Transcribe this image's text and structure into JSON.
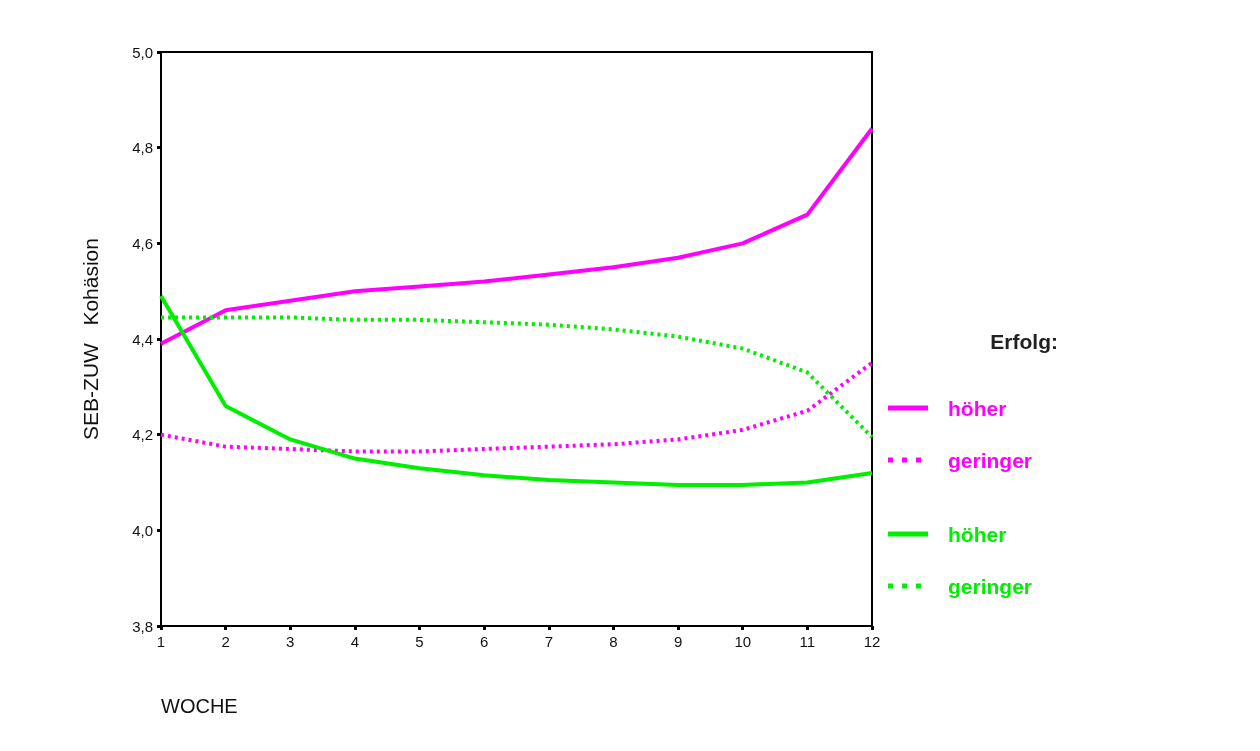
{
  "chart_data": {
    "type": "line",
    "xlabel": "WOCHE",
    "ylabel": "SEB-ZUW   Kohäsion",
    "legend_title": "Erfolg:",
    "legend": "right",
    "grid": false,
    "marker": "none",
    "x": [
      1,
      2,
      3,
      4,
      5,
      6,
      7,
      8,
      9,
      10,
      11,
      12
    ],
    "xlim": [
      1,
      12
    ],
    "xticks": [
      1,
      2,
      3,
      4,
      5,
      6,
      7,
      8,
      9,
      10,
      11,
      12
    ],
    "ylim": [
      3.8,
      5.0
    ],
    "yticks": [
      {
        "value": 3.8,
        "label": "3,8"
      },
      {
        "value": 4.0,
        "label": "4,0"
      },
      {
        "value": 4.2,
        "label": "4,2"
      },
      {
        "value": 4.4,
        "label": "4,4"
      },
      {
        "value": 4.6,
        "label": "4,6"
      },
      {
        "value": 4.8,
        "label": "4,8"
      },
      {
        "value": 5.0,
        "label": "5,0"
      }
    ],
    "series": [
      {
        "name": "höher",
        "color": "#ff00ff",
        "line_style": "solid",
        "values": [
          4.39,
          4.46,
          4.48,
          4.5,
          4.51,
          4.52,
          4.535,
          4.55,
          4.57,
          4.6,
          4.66,
          4.84
        ]
      },
      {
        "name": "geringer",
        "color": "#ff00ff",
        "line_style": "dotted",
        "values": [
          4.2,
          4.175,
          4.17,
          4.165,
          4.165,
          4.17,
          4.175,
          4.18,
          4.19,
          4.21,
          4.25,
          4.35
        ]
      },
      {
        "name": "höher",
        "color": "#00ee00",
        "line_style": "solid",
        "values": [
          4.49,
          4.26,
          4.19,
          4.15,
          4.13,
          4.115,
          4.105,
          4.1,
          4.095,
          4.095,
          4.1,
          4.12
        ]
      },
      {
        "name": "geringer",
        "color": "#00ee00",
        "line_style": "dotted",
        "values": [
          4.445,
          4.445,
          4.445,
          4.44,
          4.44,
          4.435,
          4.43,
          4.42,
          4.405,
          4.38,
          4.33,
          4.195
        ]
      }
    ]
  }
}
